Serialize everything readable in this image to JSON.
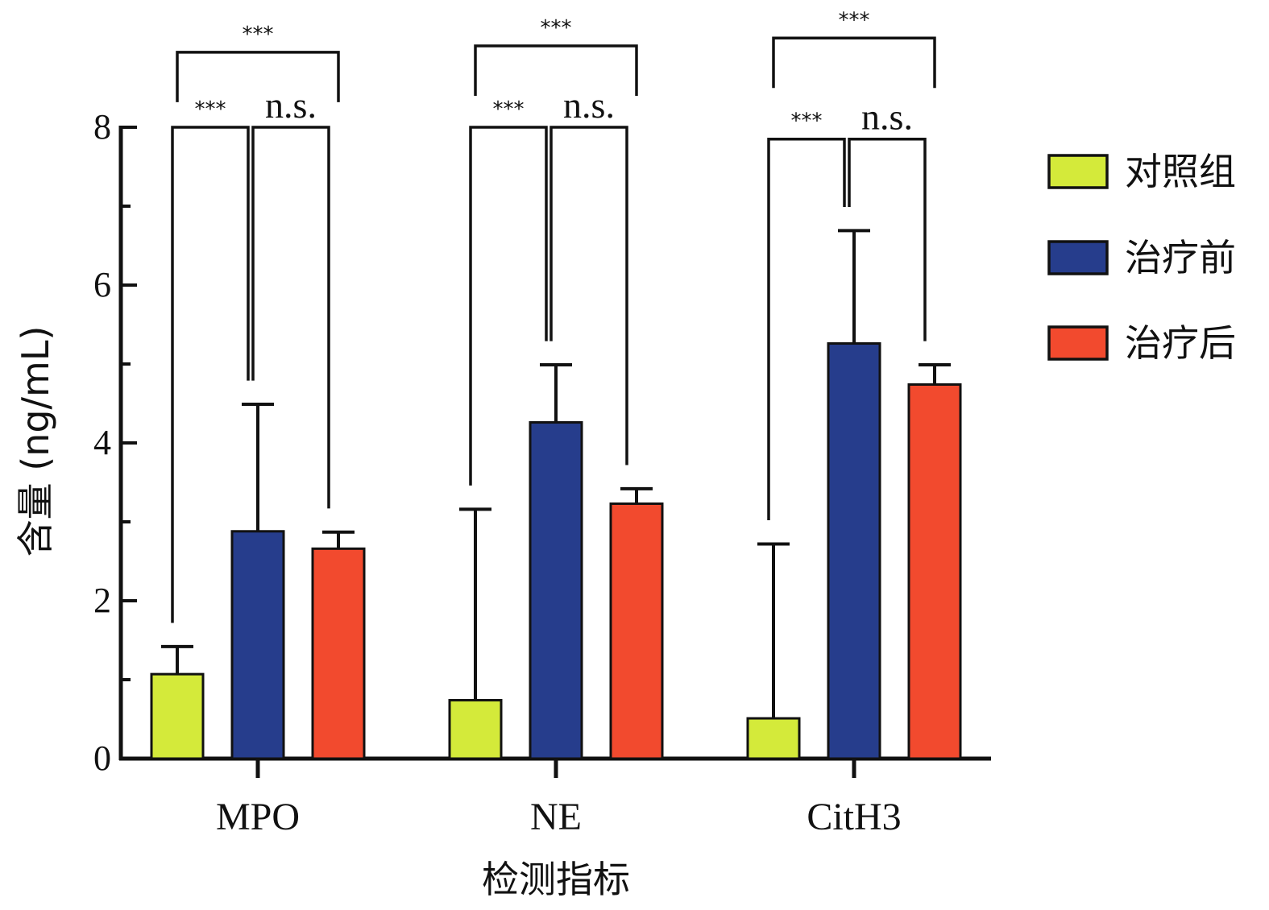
{
  "chart_data": {
    "type": "bar",
    "categories": [
      "MPO",
      "NE",
      "CitH3"
    ],
    "series": [
      {
        "name": "对照组",
        "color": "#d4ea3a",
        "values": [
          1.07,
          0.74,
          0.51
        ],
        "error_upper": [
          1.42,
          3.16,
          2.72
        ]
      },
      {
        "name": "治疗前",
        "color": "#263d8c",
        "values": [
          2.88,
          4.26,
          5.26
        ],
        "error_upper": [
          4.49,
          4.99,
          6.69
        ]
      },
      {
        "name": "治疗后",
        "color": "#f24a2e",
        "values": [
          2.66,
          3.23,
          4.74
        ],
        "error_upper": [
          2.87,
          3.42,
          4.99
        ]
      }
    ],
    "xlabel": "检测指标",
    "ylabel": "含量 (ng/mL)",
    "ylim": [
      0,
      8
    ],
    "yticks": [
      "0",
      "2",
      "4",
      "6",
      "8"
    ],
    "grid": false,
    "legend": "right",
    "significance": [
      {
        "category": "MPO",
        "pair": [
          "对照组",
          "治疗后"
        ],
        "label": "***"
      },
      {
        "category": "MPO",
        "pair": [
          "对照组",
          "治疗前"
        ],
        "label": "***"
      },
      {
        "category": "MPO",
        "pair": [
          "治疗前",
          "治疗后"
        ],
        "label": "n.s."
      },
      {
        "category": "NE",
        "pair": [
          "对照组",
          "治疗后"
        ],
        "label": "***"
      },
      {
        "category": "NE",
        "pair": [
          "对照组",
          "治疗前"
        ],
        "label": "***"
      },
      {
        "category": "NE",
        "pair": [
          "治疗前",
          "治疗后"
        ],
        "label": "n.s."
      },
      {
        "category": "CitH3",
        "pair": [
          "对照组",
          "治疗后"
        ],
        "label": "***"
      },
      {
        "category": "CitH3",
        "pair": [
          "对照组",
          "治疗前"
        ],
        "label": "***"
      },
      {
        "category": "CitH3",
        "pair": [
          "治疗前",
          "治疗后"
        ],
        "label": "n.s."
      }
    ]
  }
}
